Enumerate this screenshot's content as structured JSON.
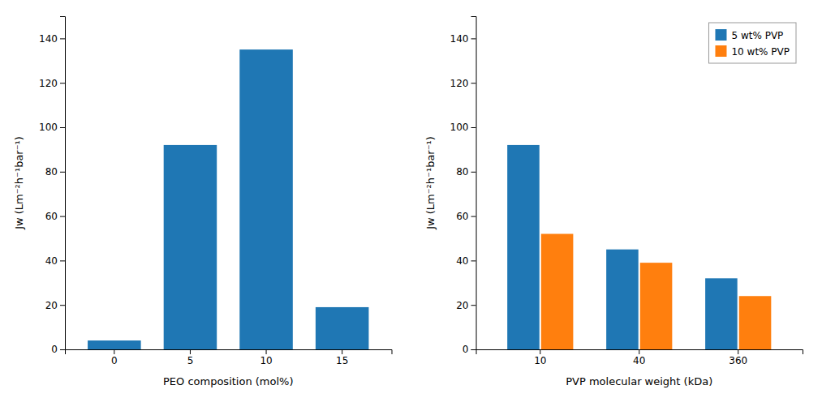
{
  "chart_data": [
    {
      "type": "bar",
      "categories": [
        "0",
        "5",
        "10",
        "15"
      ],
      "values": [
        4,
        92,
        135,
        19
      ],
      "xlabel": "PEO composition (mol%)",
      "ylabel": "Jw (Lm⁻²h⁻¹bar⁻¹)",
      "ylim": [
        0,
        150
      ],
      "yticks": [
        0,
        20,
        40,
        60,
        80,
        100,
        120,
        140
      ]
    },
    {
      "type": "bar",
      "categories": [
        "10",
        "40",
        "360"
      ],
      "series": [
        {
          "name": "5 wt% PVP",
          "values": [
            92,
            45,
            32
          ]
        },
        {
          "name": "10 wt% PVP",
          "values": [
            52,
            39,
            24
          ]
        }
      ],
      "xlabel": "PVP molecular weight (kDa)",
      "ylabel": "Jw (Lm⁻²h⁻¹bar⁻¹)",
      "ylim": [
        0,
        150
      ],
      "yticks": [
        0,
        20,
        40,
        60,
        80,
        100,
        120,
        140
      ],
      "legend": "upper right"
    }
  ]
}
